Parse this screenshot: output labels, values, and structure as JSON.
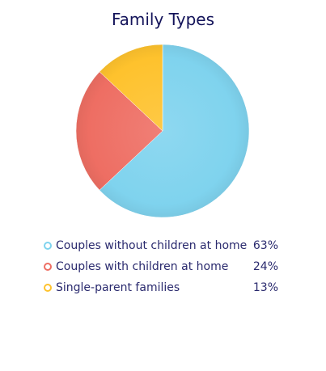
{
  "chart_data": {
    "type": "pie",
    "title": "Family Types",
    "legend_position": "bottom",
    "slices": [
      {
        "label": "Couples without children at home",
        "value": 63,
        "display": "63%",
        "color": "#7fd3ee"
      },
      {
        "label": "Couples with children at home",
        "value": 24,
        "display": "24%",
        "color": "#ee6e63"
      },
      {
        "label": "Single-parent families",
        "value": 13,
        "display": "13%",
        "color": "#fec22d"
      }
    ]
  }
}
